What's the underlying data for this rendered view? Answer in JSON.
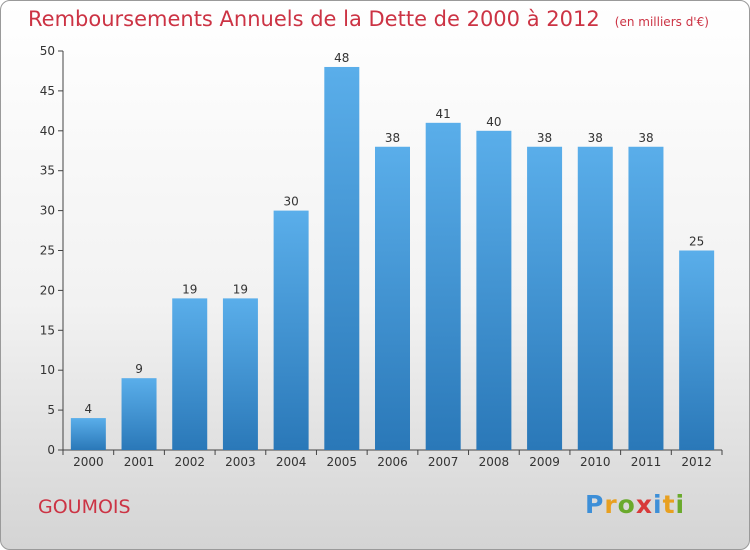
{
  "header": {
    "title": "Remboursements Annuels de la Dette de 2000 à 2012",
    "unit": "(en milliers d'€)"
  },
  "footer": {
    "city": "GOUMOIS",
    "brand": "Proxiti"
  },
  "colors": {
    "bar_top": "#5aaeea",
    "bar_bottom": "#2a78b8",
    "text_red": "#cc3344",
    "axis": "#444444"
  },
  "chart_data": {
    "type": "bar",
    "title": "Remboursements Annuels de la Dette de 2000 à 2012",
    "categories": [
      "2000",
      "2001",
      "2002",
      "2003",
      "2004",
      "2005",
      "2006",
      "2007",
      "2008",
      "2009",
      "2010",
      "2011",
      "2012"
    ],
    "values": [
      4,
      9,
      19,
      19,
      30,
      48,
      38,
      41,
      40,
      38,
      38,
      38,
      25
    ],
    "ylim": [
      0,
      50
    ],
    "yticks": [
      0,
      5,
      10,
      15,
      20,
      25,
      30,
      35,
      40,
      45,
      50
    ],
    "grid": false,
    "data_labels": true
  }
}
